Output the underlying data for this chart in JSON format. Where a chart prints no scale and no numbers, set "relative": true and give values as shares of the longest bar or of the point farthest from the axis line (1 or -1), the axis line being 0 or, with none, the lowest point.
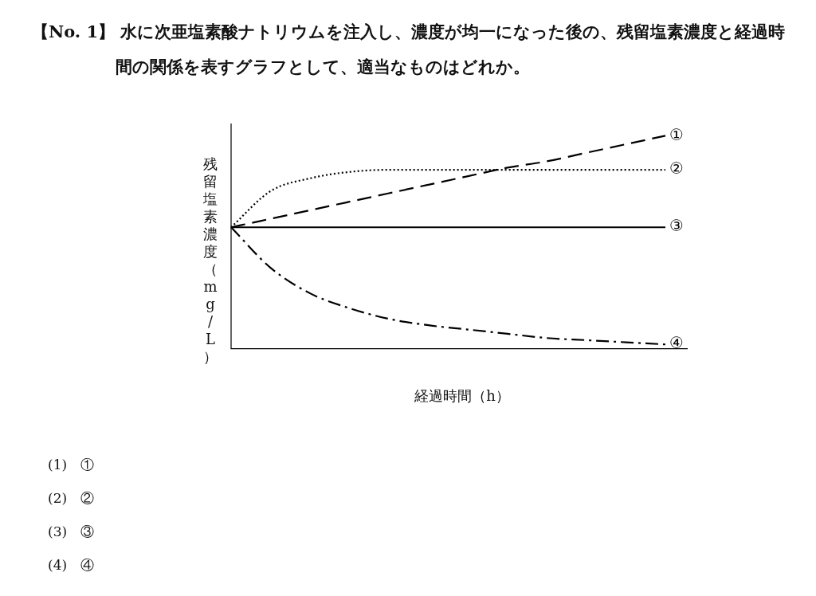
{
  "chart_data": {
    "type": "line",
    "relative": true,
    "title": "【No. 1】 水に次亜塩素酸ナトリウムを注入し、濃度が均一になった後の、残留塩素濃度と経過時間の関係を表すグラフとして、適当なものはどれか。",
    "xlabel": "経過時間（h）",
    "ylabel": "残留塩素濃度（mg/L）",
    "categories": [
      null,
      null,
      null,
      null,
      null,
      null,
      null,
      null,
      null,
      null,
      null,
      null
    ],
    "marker": "none",
    "legend": false,
    "series": [
      {
        "name": "①",
        "color": "#000000",
        "line_style": "dashed",
        "values": [
          0.57,
          0.61,
          0.65,
          0.69,
          0.73,
          0.77,
          0.81,
          0.85,
          0.88,
          0.92,
          0.96,
          1.0
        ]
      },
      {
        "name": "②",
        "color": "#000000",
        "line_style": "dotted",
        "values": [
          0.57,
          0.74,
          0.8,
          0.83,
          0.84,
          0.84,
          0.84,
          0.84,
          0.84,
          0.84,
          0.84,
          0.84
        ]
      },
      {
        "name": "③",
        "color": "#000000",
        "line_style": "solid",
        "values": [
          0.57,
          0.57,
          0.57,
          0.57,
          0.57,
          0.57,
          0.57,
          0.57,
          0.57,
          0.57,
          0.57,
          0.57
        ]
      },
      {
        "name": "④",
        "color": "#000000",
        "line_style": "dashdot",
        "values": [
          0.57,
          0.38,
          0.26,
          0.19,
          0.14,
          0.11,
          0.09,
          0.07,
          0.05,
          0.04,
          0.03,
          0.02
        ]
      }
    ],
    "annotations": [
      "(1)　①",
      "(2)　②",
      "(3)　③",
      "(4)　④"
    ]
  }
}
